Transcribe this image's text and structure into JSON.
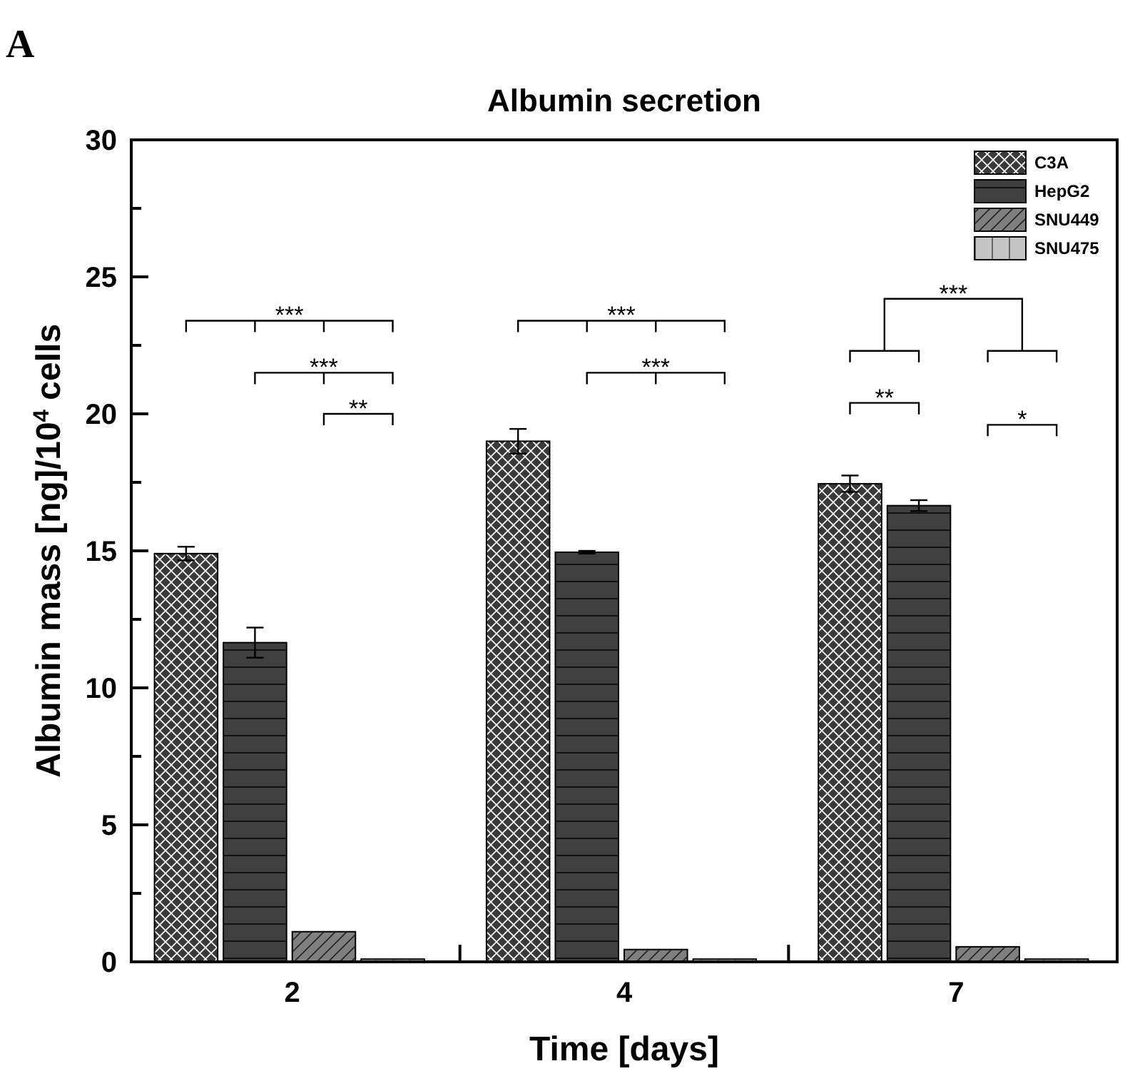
{
  "chart_data": {
    "type": "bar",
    "title": "Albumin secretion",
    "xlabel": "Time [days]",
    "ylabel": "Albumin mass [ng]/10$^{4}$ cells",
    "categories": [
      "2",
      "4",
      "7"
    ],
    "series": [
      {
        "name": "C3A",
        "color": "#3a3a3a",
        "values": [
          14.9,
          19.0,
          17.45
        ],
        "errors": [
          0.25,
          0.45,
          0.3
        ]
      },
      {
        "name": "HepG2",
        "color": "#404040",
        "values": [
          11.65,
          14.95,
          16.65
        ],
        "errors": [
          0.55,
          0.05,
          0.2
        ]
      },
      {
        "name": "SNU449",
        "color": "#808080",
        "values": [
          1.1,
          0.45,
          0.55
        ]
      },
      {
        "name": "SNU475",
        "color": "#c4c4c4",
        "values": [
          0.1,
          0.1,
          0.1
        ]
      }
    ],
    "ylim": [
      0,
      30
    ],
    "yticks": [
      0,
      {
        "value": 2.5,
        "label": null
      },
      5,
      {
        "value": 7.5,
        "label": null
      },
      10,
      {
        "value": 12.5,
        "label": null
      },
      15,
      {
        "value": 17.5,
        "label": null
      },
      20,
      {
        "value": 22.5,
        "label": null
      },
      25,
      {
        "value": 27.5,
        "label": null
      },
      30
    ],
    "grid": false,
    "legend": "top right",
    "annotations": [
      "A",
      "***",
      "***",
      "**",
      "***",
      "***",
      "**",
      "*",
      "***"
    ]
  }
}
